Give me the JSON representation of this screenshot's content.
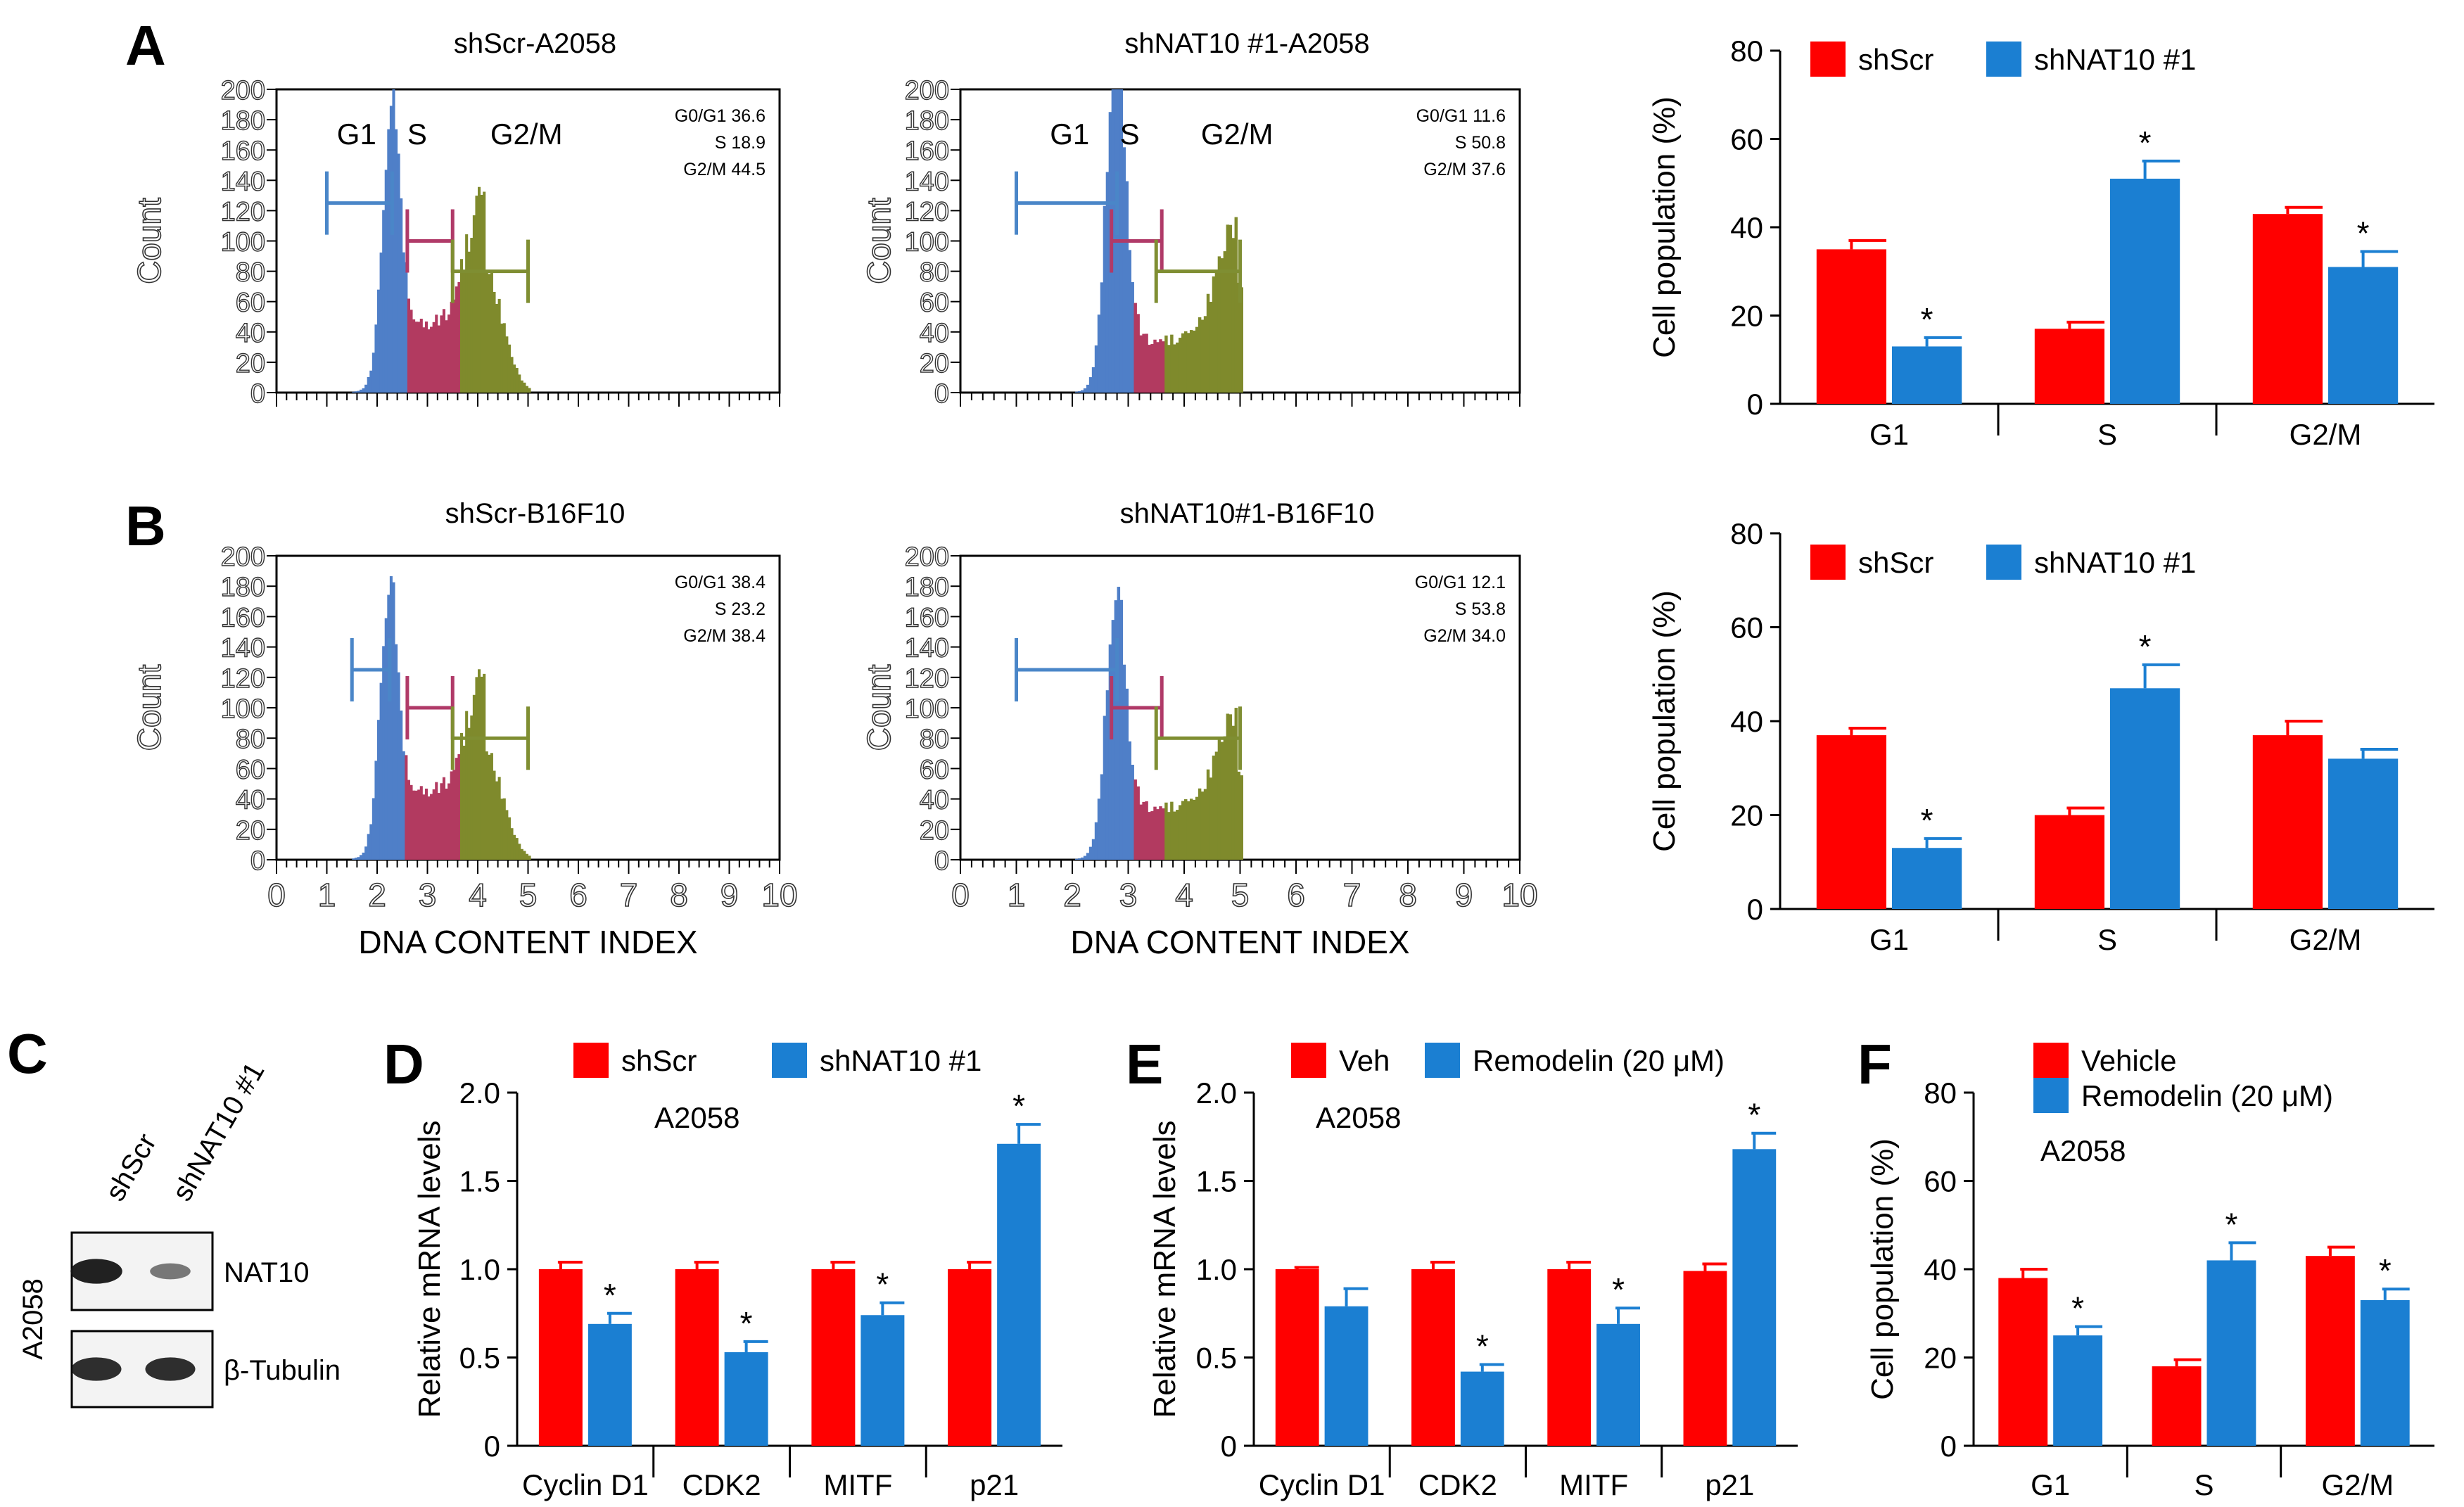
{
  "figure": {
    "panel_labels": {
      "A": "A",
      "B": "B",
      "C": "C",
      "D": "D",
      "E": "E",
      "F": "F"
    },
    "colors": {
      "red": "#FF0000",
      "blue": "#1B7FD2",
      "flow_g1": "#4F7FC8",
      "flow_s": "#B23A60",
      "flow_g2m": "#7F8A2C",
      "gate_g1": "#4A86C8",
      "gate_s": "#B03A68",
      "gate_g2m": "#7F8E32"
    }
  },
  "chart_data": [
    {
      "id": "A-left",
      "type": "histogram",
      "title": "shScr-A2058",
      "ylabel": "Count",
      "xlabel": "",
      "xlim": [
        0,
        10
      ],
      "ylim": [
        0,
        200
      ],
      "yticks": [
        "0",
        "20",
        "40",
        "60",
        "80",
        "100",
        "120",
        "140",
        "160",
        "180",
        "200"
      ],
      "xticks": [],
      "phase_labels": [
        "G1",
        "S",
        "G2/M"
      ],
      "stats": [
        "G0/G1 36.6",
        "S 18.9",
        "G2/M 44.5"
      ],
      "peaks": {
        "g1_pos": 2.25,
        "g1_height": 160,
        "s_level": 45,
        "g2_pos": 4.1,
        "g2_height": 85,
        "end": 5.0
      }
    },
    {
      "id": "A-mid",
      "type": "histogram",
      "title": "shNAT10 #1-A2058",
      "ylabel": "Count",
      "xlabel": "",
      "xlim": [
        0,
        10
      ],
      "ylim": [
        0,
        200
      ],
      "yticks": [
        "0",
        "20",
        "40",
        "60",
        "80",
        "100",
        "120",
        "140",
        "160",
        "180",
        "200"
      ],
      "xticks": [],
      "phase_labels": [
        "G1",
        "S",
        "G2/M"
      ],
      "stats": [
        "G0/G1 11.6",
        "S 50.8",
        "G2/M 37.6"
      ],
      "peaks": {
        "g1_pos": 2.75,
        "g1_height": 200,
        "s_level": 35,
        "g2_pos": 4.9,
        "g2_height": 75,
        "end": 5.0
      }
    },
    {
      "id": "B-left",
      "type": "histogram",
      "title": "shScr-B16F10",
      "ylabel": "Count",
      "xlabel": "DNA CONTENT INDEX",
      "xlim": [
        0,
        10
      ],
      "ylim": [
        0,
        200
      ],
      "yticks": [
        "0",
        "20",
        "40",
        "60",
        "80",
        "100",
        "120",
        "140",
        "160",
        "180",
        "200"
      ],
      "xticks": [
        "0",
        "1",
        "2",
        "3",
        "4",
        "5",
        "6",
        "7",
        "8",
        "9",
        "10"
      ],
      "phase_labels": [],
      "stats": [
        "G0/G1 38.4",
        "S 23.2",
        "G2/M 38.4"
      ],
      "peaks": {
        "g1_pos": 2.2,
        "g1_height": 150,
        "s_level": 45,
        "g2_pos": 4.1,
        "g2_height": 75,
        "end": 5.0
      }
    },
    {
      "id": "B-mid",
      "type": "histogram",
      "title": "shNAT10#1-B16F10",
      "ylabel": "Count",
      "xlabel": "DNA CONTENT INDEX",
      "xlim": [
        0,
        10
      ],
      "ylim": [
        0,
        200
      ],
      "yticks": [
        "0",
        "20",
        "40",
        "60",
        "80",
        "100",
        "120",
        "140",
        "160",
        "180",
        "200"
      ],
      "xticks": [
        "0",
        "1",
        "2",
        "3",
        "4",
        "5",
        "6",
        "7",
        "8",
        "9",
        "10"
      ],
      "phase_labels": [],
      "stats": [
        "G0/G1 12.1",
        "S 53.8",
        "G2/M 34.0"
      ],
      "peaks": {
        "g1_pos": 2.75,
        "g1_height": 148,
        "s_level": 35,
        "g2_pos": 4.9,
        "g2_height": 60,
        "end": 5.0
      }
    },
    {
      "id": "A-bar",
      "type": "bar",
      "ylabel": "Cell population (%)",
      "ylim": [
        0,
        80
      ],
      "yticks": [
        "0",
        "20",
        "40",
        "60",
        "80"
      ],
      "categories": [
        "G1",
        "S",
        "G2/M"
      ],
      "series": [
        {
          "name": "shScr",
          "color": "#FF0000",
          "values": [
            35,
            17,
            43
          ],
          "errors": [
            2,
            1.5,
            1.5
          ],
          "stars": [
            "",
            "",
            ""
          ]
        },
        {
          "name": "shNAT10 #1",
          "color": "#1B7FD2",
          "values": [
            13,
            51,
            31
          ],
          "errors": [
            2,
            4,
            3.5
          ],
          "stars": [
            "*",
            "*",
            "*"
          ]
        }
      ],
      "annotation": ""
    },
    {
      "id": "B-bar",
      "type": "bar",
      "ylabel": "Cell population (%)",
      "ylim": [
        0,
        80
      ],
      "yticks": [
        "0",
        "20",
        "40",
        "60",
        "80"
      ],
      "categories": [
        "G1",
        "S",
        "G2/M"
      ],
      "series": [
        {
          "name": "shScr",
          "color": "#FF0000",
          "values": [
            37,
            20,
            37
          ],
          "errors": [
            1.5,
            1.5,
            3
          ],
          "stars": [
            "",
            "",
            ""
          ]
        },
        {
          "name": "shNAT10 #1",
          "color": "#1B7FD2",
          "values": [
            13,
            47,
            32
          ],
          "errors": [
            2,
            5,
            2
          ],
          "stars": [
            "*",
            "*",
            ""
          ]
        }
      ],
      "annotation": ""
    },
    {
      "id": "D",
      "type": "bar",
      "ylabel": "Relative mRNA  levels",
      "ylim": [
        0,
        2.0
      ],
      "yticks": [
        "0",
        "0.5",
        "1.0",
        "1.5",
        "2.0"
      ],
      "categories": [
        "Cyclin D1",
        "CDK2",
        "MITF",
        "p21"
      ],
      "series": [
        {
          "name": "shScr",
          "color": "#FF0000",
          "values": [
            1.0,
            1.0,
            1.0,
            1.0
          ],
          "errors": [
            0.04,
            0.04,
            0.04,
            0.04
          ],
          "stars": [
            "",
            "",
            "",
            ""
          ]
        },
        {
          "name": "shNAT10 #1",
          "color": "#1B7FD2",
          "values": [
            0.69,
            0.53,
            0.74,
            1.71
          ],
          "errors": [
            0.06,
            0.06,
            0.07,
            0.11
          ],
          "stars": [
            "*",
            "*",
            "*",
            "*"
          ]
        }
      ],
      "annotation": "A2058"
    },
    {
      "id": "E",
      "type": "bar",
      "ylabel": "Relative mRNA  levels",
      "ylim": [
        0,
        2.0
      ],
      "yticks": [
        "0",
        "0.5",
        "1.0",
        "1.5",
        "2.0"
      ],
      "categories": [
        "Cyclin D1",
        "CDK2",
        "MITF",
        "p21"
      ],
      "series": [
        {
          "name": "Veh",
          "color": "#FF0000",
          "values": [
            1.0,
            1.0,
            1.0,
            0.99
          ],
          "errors": [
            0.01,
            0.04,
            0.04,
            0.04
          ],
          "stars": [
            "",
            "",
            "",
            ""
          ]
        },
        {
          "name": "Remodelin (20 μM)",
          "color": "#1B7FD2",
          "values": [
            0.79,
            0.42,
            0.69,
            1.68
          ],
          "errors": [
            0.1,
            0.04,
            0.09,
            0.09
          ],
          "stars": [
            "",
            "*",
            "*",
            "*"
          ]
        }
      ],
      "annotation": "A2058"
    },
    {
      "id": "F",
      "type": "bar",
      "ylabel": "Cell population (%)",
      "ylim": [
        0,
        80
      ],
      "yticks": [
        "0",
        "20",
        "40",
        "60",
        "80"
      ],
      "categories": [
        "G1",
        "S",
        "G2/M"
      ],
      "series": [
        {
          "name": "Vehicle",
          "color": "#FF0000",
          "values": [
            38,
            18,
            43
          ],
          "errors": [
            2,
            1.5,
            2
          ],
          "stars": [
            "",
            "",
            ""
          ]
        },
        {
          "name": "Remodelin (20 μM)",
          "color": "#1B7FD2",
          "values": [
            25,
            42,
            33
          ],
          "errors": [
            2,
            4,
            2.5
          ],
          "stars": [
            "*",
            "*",
            "*"
          ]
        }
      ],
      "annotation": "A2058"
    }
  ],
  "western": {
    "lanes": [
      "shScr",
      "shNAT10 #1"
    ],
    "cell_line": "A2058",
    "bands": [
      {
        "label": "NAT10",
        "intensities": [
          1.0,
          0.35
        ]
      },
      {
        "label": "β-Tubulin",
        "intensities": [
          0.9,
          0.9
        ]
      }
    ]
  }
}
